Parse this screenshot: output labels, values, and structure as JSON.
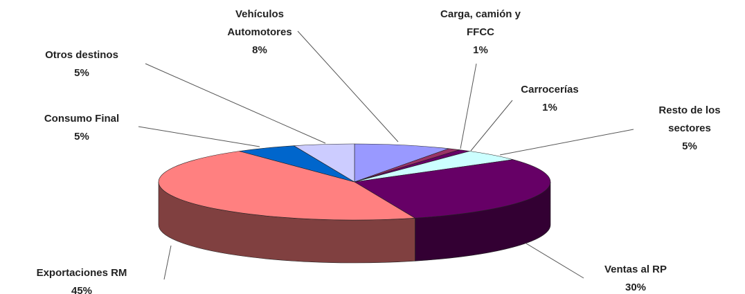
{
  "chart_data": {
    "type": "pie3d",
    "categories": [
      "Vehículos Automotores",
      "Carga, camión y FFCC",
      "Carrocerías",
      "Resto de los sectores",
      "Ventas al RP",
      "Exportaciones RM",
      "Consumo Final",
      "Otros destinos"
    ],
    "values": [
      8,
      1,
      1,
      5,
      30,
      45,
      5,
      5
    ],
    "value_labels": [
      "8%",
      "1%",
      "1%",
      "5%",
      "30%",
      "45%",
      "5%",
      "5%"
    ],
    "colors": [
      "#9999ff",
      "#993366",
      "#660066",
      "#ccffff",
      "#660066",
      "#ff8080",
      "#0066cc",
      "#ccccff"
    ]
  }
}
